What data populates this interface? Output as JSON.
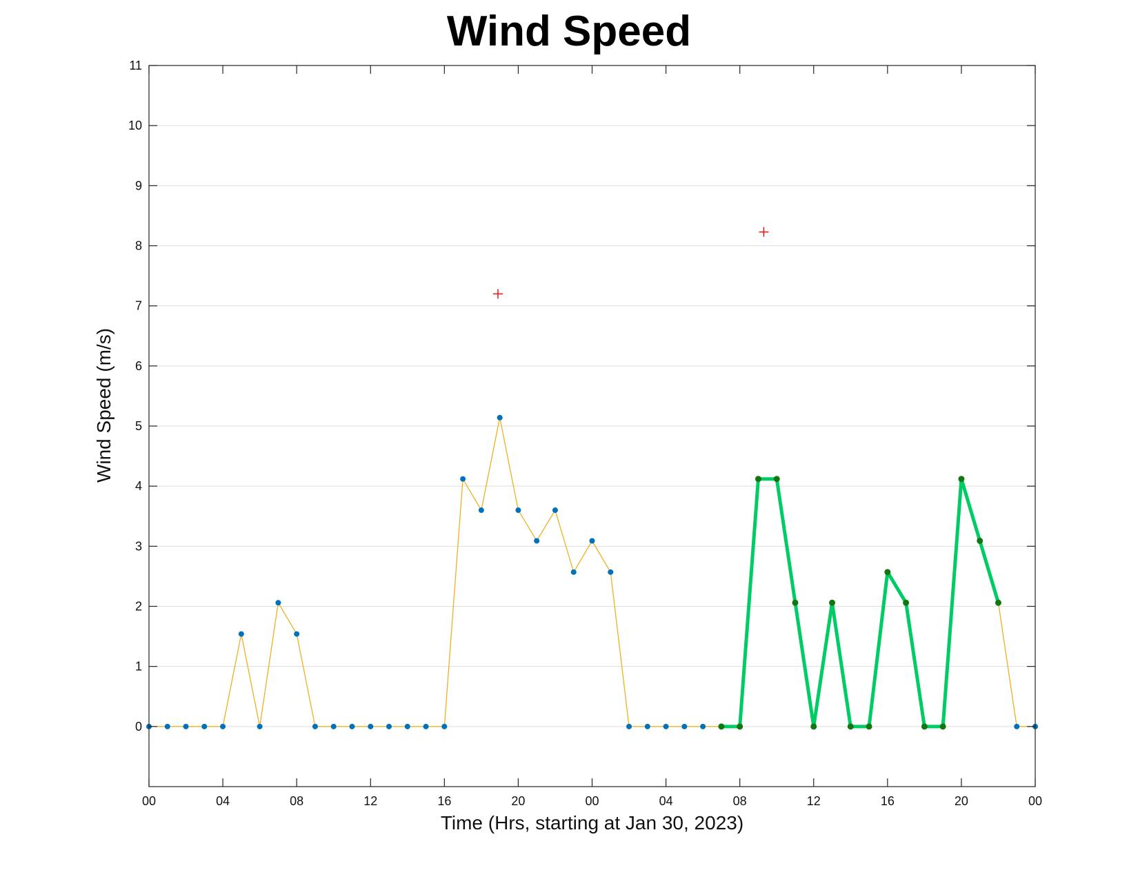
{
  "chart_data": {
    "type": "line",
    "title": "Wind Speed",
    "xlabel": "Time (Hrs, starting at Jan 30, 2023)",
    "ylabel": "Wind Speed (m/s)",
    "x_unit": "hours since Jan 30, 2023 00:00",
    "xlim": [
      0,
      48
    ],
    "ylim": [
      -1,
      11
    ],
    "x_tick_values": [
      0,
      4,
      8,
      12,
      16,
      20,
      24,
      28,
      32,
      36,
      40,
      44,
      48
    ],
    "x_tick_labels": [
      "00",
      "04",
      "08",
      "12",
      "16",
      "20",
      "00",
      "04",
      "08",
      "12",
      "16",
      "20",
      "00"
    ],
    "y_ticks": [
      0,
      1,
      2,
      3,
      4,
      5,
      6,
      7,
      8,
      9,
      10,
      11
    ],
    "grid": "horizontal",
    "series": [
      {
        "style": "thin-line-with-dots",
        "line_color": "#EDB120",
        "marker_color": "#0072BD",
        "x": [
          0,
          1,
          2,
          3,
          4,
          5,
          6,
          7,
          8,
          9,
          10,
          11,
          12,
          13,
          14,
          15,
          16,
          17,
          18,
          19,
          20,
          21,
          22,
          23,
          24,
          25,
          26,
          27,
          28,
          29,
          30,
          31,
          32,
          33,
          34,
          35,
          36,
          37,
          38,
          39,
          40,
          41,
          42,
          43,
          44,
          45,
          46,
          47,
          48
        ],
        "y": [
          0,
          0,
          0,
          0,
          0,
          1.54,
          0,
          2.06,
          1.54,
          0,
          0,
          0,
          0,
          0,
          0,
          0,
          0,
          4.12,
          3.6,
          5.14,
          3.6,
          3.09,
          3.6,
          2.57,
          3.09,
          2.57,
          0,
          0,
          0,
          0,
          0,
          0,
          0,
          4.12,
          4.12,
          2.06,
          0,
          2.06,
          0,
          0,
          2.57,
          2.06,
          0,
          0,
          4.12,
          3.09,
          2.06,
          0,
          0
        ]
      },
      {
        "style": "thick-line-with-dots",
        "line_color": "#00CC66",
        "marker_color": "#117711",
        "x": [
          31,
          32,
          33,
          34,
          35,
          36,
          37,
          38,
          39,
          40,
          41,
          42,
          43,
          44,
          45,
          46
        ],
        "y": [
          0,
          0,
          4.12,
          4.12,
          2.06,
          0,
          2.06,
          0,
          0,
          2.57,
          2.06,
          0,
          0,
          4.12,
          3.09,
          2.06
        ]
      },
      {
        "style": "plus-markers",
        "marker_color": "#FF0000",
        "x": [
          18.9,
          33.3
        ],
        "y": [
          7.2,
          8.23
        ]
      }
    ]
  }
}
